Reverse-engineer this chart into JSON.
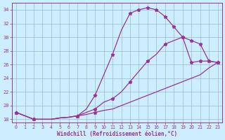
{
  "xlabel": "Windchill (Refroidissement éolien,°C)",
  "xlim": [
    -0.5,
    23.5
  ],
  "ylim": [
    17.5,
    35.0
  ],
  "xticks": [
    0,
    1,
    2,
    3,
    4,
    5,
    6,
    7,
    8,
    9,
    10,
    11,
    12,
    13,
    14,
    15,
    16,
    17,
    18,
    19,
    20,
    21,
    22,
    23
  ],
  "yticks": [
    18,
    20,
    22,
    24,
    26,
    28,
    30,
    32,
    34
  ],
  "line_color": "#993399",
  "bg_color": "#cceeff",
  "grid_color": "#99bbcc",
  "line1_x": [
    0,
    1,
    2,
    3,
    4,
    5,
    6,
    7,
    8,
    9,
    10,
    11,
    12,
    13,
    14,
    15,
    16,
    17,
    18,
    19,
    20,
    21,
    22,
    23
  ],
  "line1_y": [
    19.0,
    18.5,
    18.0,
    18.0,
    18.0,
    18.2,
    18.3,
    18.5,
    19.5,
    21.5,
    24.5,
    27.5,
    31.0,
    33.5,
    34.0,
    34.3,
    34.0,
    33.0,
    31.5,
    30.0,
    26.3,
    26.5,
    26.5,
    26.3
  ],
  "line1_markers_x": [
    0,
    2,
    7,
    9,
    11,
    13,
    14,
    15,
    16,
    17,
    18,
    19,
    20,
    21,
    22,
    23
  ],
  "line1_markers_y": [
    19.0,
    18.0,
    18.5,
    21.5,
    27.5,
    33.5,
    34.0,
    34.3,
    34.0,
    33.0,
    31.5,
    30.0,
    26.3,
    26.5,
    26.5,
    26.3
  ],
  "line2_x": [
    0,
    1,
    2,
    3,
    4,
    5,
    6,
    7,
    8,
    9,
    10,
    11,
    12,
    13,
    14,
    15,
    16,
    17,
    18,
    19,
    20,
    21,
    22,
    23
  ],
  "line2_y": [
    19.0,
    18.5,
    18.0,
    18.0,
    18.0,
    18.2,
    18.3,
    18.5,
    19.0,
    19.5,
    20.5,
    21.0,
    22.0,
    23.5,
    25.0,
    26.5,
    27.5,
    29.0,
    29.5,
    30.0,
    29.5,
    29.0,
    26.5,
    26.3
  ],
  "line2_markers_x": [
    0,
    2,
    7,
    9,
    11,
    13,
    15,
    17,
    19,
    20,
    21,
    22,
    23
  ],
  "line2_markers_y": [
    19.0,
    18.0,
    18.5,
    19.5,
    21.0,
    23.5,
    26.5,
    29.0,
    30.0,
    29.5,
    29.0,
    26.5,
    26.3
  ],
  "line3_x": [
    0,
    1,
    2,
    3,
    4,
    5,
    6,
    7,
    8,
    9,
    10,
    11,
    12,
    13,
    14,
    15,
    16,
    17,
    18,
    19,
    20,
    21,
    22,
    23
  ],
  "line3_y": [
    19.0,
    18.5,
    18.0,
    18.0,
    18.0,
    18.2,
    18.3,
    18.5,
    18.7,
    19.0,
    19.3,
    19.5,
    20.0,
    20.5,
    21.0,
    21.5,
    22.0,
    22.5,
    23.0,
    23.5,
    24.0,
    24.5,
    25.5,
    26.3
  ],
  "line3_markers_x": [
    0,
    2,
    7,
    9,
    23
  ],
  "line3_markers_y": [
    19.0,
    18.0,
    18.5,
    19.0,
    26.3
  ]
}
